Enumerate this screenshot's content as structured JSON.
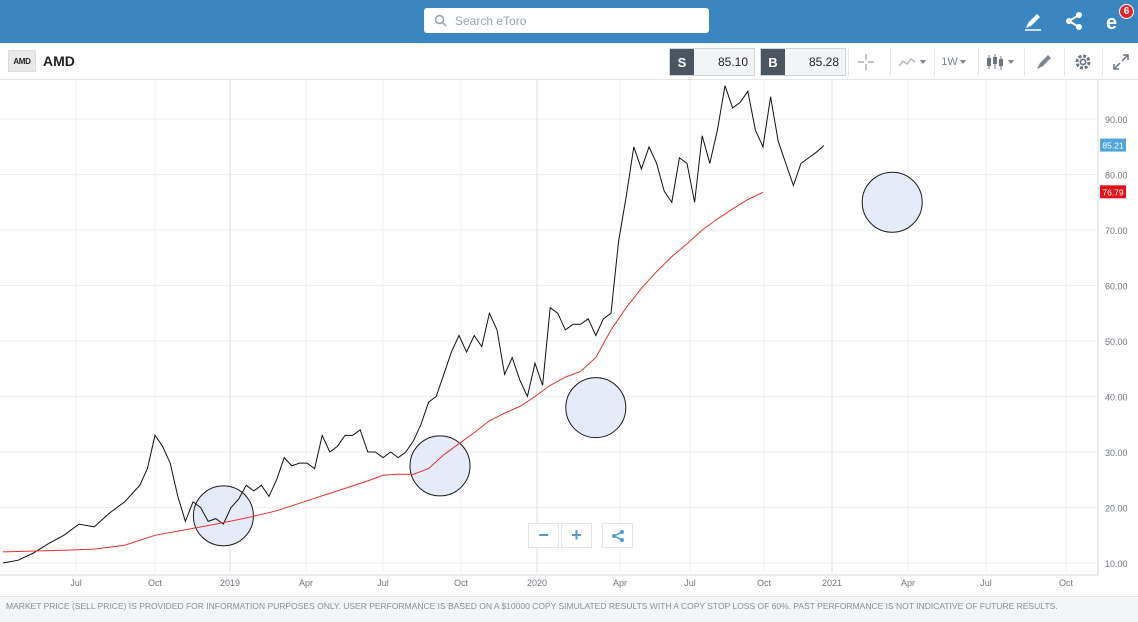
{
  "header": {
    "search_placeholder": "Search eToro",
    "notification_count": "6"
  },
  "instrument": {
    "logo_text": "AMD",
    "symbol": "AMD",
    "sell_label": "S",
    "sell_price": "85.10",
    "buy_label": "B",
    "buy_price": "85.28",
    "interval": "1W"
  },
  "colors": {
    "topbar": "#3a86c0",
    "price_line": "#111111",
    "moving_average": "#e8312a",
    "current_price_tag": "#4ea6dc",
    "ma_tag": "#e3121a",
    "highlight_circle": "#e5ebf9"
  },
  "chart_data": {
    "type": "line",
    "title": "",
    "xlabel": "",
    "ylabel": "",
    "ylim": [
      9,
      98
    ],
    "x_ticks": [
      "Jul",
      "Oct",
      "2019",
      "Apr",
      "Jul",
      "Oct",
      "2020",
      "Apr",
      "Jul",
      "Oct",
      "2021",
      "Apr",
      "Jul",
      "Oct"
    ],
    "y_ticks": [
      "10.00",
      "20.00",
      "30.00",
      "40.00",
      "50.00",
      "60.00",
      "70.00",
      "80.00",
      "90.00"
    ],
    "current_price_label": "85.21",
    "ma_label": "76.79",
    "series": [
      {
        "values": [
          [
            0,
            10
          ],
          [
            2,
            10.5
          ],
          [
            4,
            11.8
          ],
          [
            6,
            13.5
          ],
          [
            8,
            15
          ],
          [
            10,
            17
          ],
          [
            12,
            16.5
          ],
          [
            14,
            19
          ],
          [
            16,
            21
          ],
          [
            18,
            24
          ],
          [
            19,
            27
          ],
          [
            20,
            33
          ],
          [
            21,
            31
          ],
          [
            22,
            28
          ],
          [
            23,
            22
          ],
          [
            24,
            17.5
          ],
          [
            25,
            21
          ],
          [
            26,
            20
          ],
          [
            27,
            17.5
          ],
          [
            28,
            18
          ],
          [
            29,
            17
          ],
          [
            30,
            20
          ],
          [
            31,
            21.5
          ],
          [
            32,
            24
          ],
          [
            33,
            23
          ],
          [
            34,
            24
          ],
          [
            35,
            22
          ],
          [
            36,
            25
          ],
          [
            37,
            29
          ],
          [
            38,
            27.5
          ],
          [
            39,
            28
          ],
          [
            40,
            28
          ],
          [
            41,
            27
          ],
          [
            42,
            33
          ],
          [
            43,
            30
          ],
          [
            44,
            31
          ],
          [
            45,
            33
          ],
          [
            46,
            33
          ],
          [
            47,
            34
          ],
          [
            48,
            30
          ],
          [
            49,
            30
          ],
          [
            50,
            29
          ],
          [
            51,
            30
          ],
          [
            52,
            29
          ],
          [
            53,
            30
          ],
          [
            54,
            32
          ],
          [
            55,
            35
          ],
          [
            56,
            39
          ],
          [
            57,
            40
          ],
          [
            58,
            44
          ],
          [
            59,
            48
          ],
          [
            60,
            51
          ],
          [
            61,
            48
          ],
          [
            62,
            51
          ],
          [
            63,
            49
          ],
          [
            64,
            55
          ],
          [
            65,
            52
          ],
          [
            66,
            44
          ],
          [
            67,
            47
          ],
          [
            68,
            43
          ],
          [
            69,
            40
          ],
          [
            70,
            46
          ],
          [
            71,
            42
          ],
          [
            72,
            56
          ],
          [
            73,
            55
          ],
          [
            74,
            52
          ],
          [
            75,
            53
          ],
          [
            76,
            53
          ],
          [
            77,
            54
          ],
          [
            78,
            51
          ],
          [
            79,
            54
          ],
          [
            80,
            55
          ],
          [
            81,
            68
          ],
          [
            82,
            76
          ],
          [
            83,
            85
          ],
          [
            84,
            81
          ],
          [
            85,
            85
          ],
          [
            86,
            82
          ],
          [
            87,
            77
          ],
          [
            88,
            75
          ],
          [
            89,
            83
          ],
          [
            90,
            82
          ],
          [
            91,
            75
          ],
          [
            92,
            87
          ],
          [
            93,
            82
          ],
          [
            94,
            88
          ],
          [
            95,
            96
          ],
          [
            96,
            92
          ],
          [
            97,
            93
          ],
          [
            98,
            95
          ],
          [
            99,
            88
          ],
          [
            100,
            85
          ],
          [
            101,
            94
          ],
          [
            102,
            86
          ],
          [
            103,
            82
          ],
          [
            104,
            78
          ],
          [
            105,
            82
          ],
          [
            106,
            83
          ],
          [
            107,
            84
          ],
          [
            108,
            85.2
          ]
        ]
      },
      {
        "values": [
          [
            0,
            12
          ],
          [
            8,
            12.3
          ],
          [
            12,
            12.5
          ],
          [
            16,
            13.2
          ],
          [
            20,
            15
          ],
          [
            24,
            16
          ],
          [
            28,
            17
          ],
          [
            32,
            18.1
          ],
          [
            36,
            19.4
          ],
          [
            40,
            21.2
          ],
          [
            44,
            23
          ],
          [
            48,
            24.8
          ],
          [
            50,
            25.8
          ],
          [
            52,
            26
          ],
          [
            54,
            26
          ],
          [
            56,
            27
          ],
          [
            58,
            29.5
          ],
          [
            60,
            31.5
          ],
          [
            62,
            33.5
          ],
          [
            64,
            35.6
          ],
          [
            66,
            37
          ],
          [
            68,
            38.2
          ],
          [
            70,
            40
          ],
          [
            72,
            42
          ],
          [
            74,
            43.5
          ],
          [
            76,
            44.5
          ],
          [
            78,
            47
          ],
          [
            80,
            52
          ],
          [
            82,
            56
          ],
          [
            84,
            59.5
          ],
          [
            86,
            62.5
          ],
          [
            88,
            65.2
          ],
          [
            90,
            67.5
          ],
          [
            92,
            70
          ],
          [
            94,
            72
          ],
          [
            96,
            73.8
          ],
          [
            98,
            75.5
          ],
          [
            100,
            76.8
          ]
        ]
      }
    ],
    "annotations": [
      {
        "type": "circle",
        "center": [
          29,
          18.5
        ]
      },
      {
        "type": "circle",
        "center": [
          57.5,
          27.5
        ]
      },
      {
        "type": "circle",
        "center": [
          78,
          38
        ]
      },
      {
        "type": "circle",
        "center": [
          117,
          75
        ]
      }
    ]
  },
  "footer": {
    "disclaimer": "MARKET PRICE (SELL PRICE) IS PROVIDED FOR INFORMATION PURPOSES ONLY. USER PERFORMANCE IS BASED ON A $10000 COPY SIMULATED RESULTS WITH A COPY STOP LOSS OF 60%. PAST PERFORMANCE IS NOT INDICATIVE OF FUTURE RESULTS."
  }
}
